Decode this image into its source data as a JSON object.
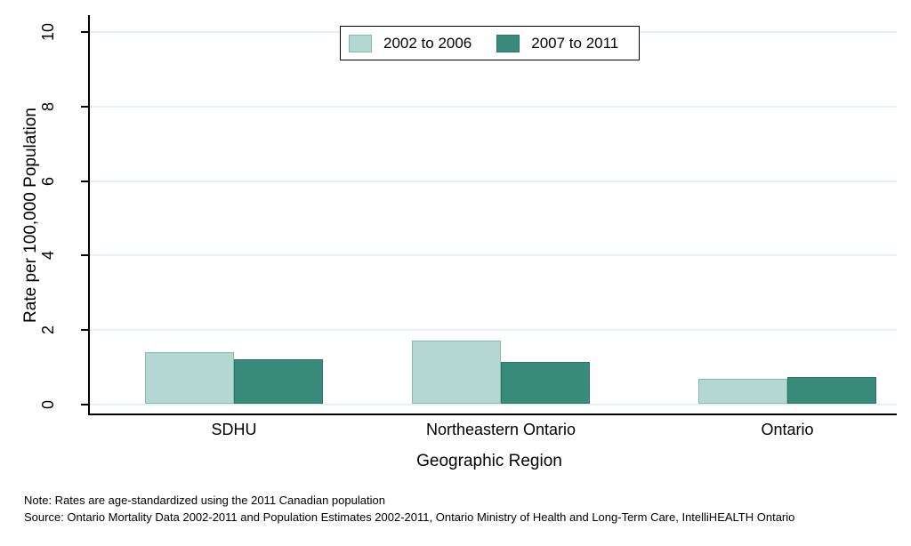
{
  "chart_data": {
    "type": "bar",
    "categories": [
      "SDHU",
      "Northeastern Ontario",
      "Ontario"
    ],
    "series": [
      {
        "name": "2002 to 2006",
        "color": "#b3d8d2",
        "border_color": "#86b9b0",
        "values": [
          1.38,
          1.7,
          0.68
        ]
      },
      {
        "name": "2007 to 2011",
        "color": "#388b7b",
        "border_color": "#2e7568",
        "values": [
          1.2,
          1.13,
          0.72
        ]
      }
    ],
    "title": "",
    "xlabel": "Geographic Region",
    "ylabel": "Rate per 100,000 Population",
    "ylim": [
      0,
      10
    ],
    "yticks": [
      0,
      2,
      4,
      6,
      8,
      10
    ],
    "grid": true,
    "gridline_color": "#e9f0f2",
    "legend_position": "top-center"
  },
  "notes": {
    "note": "Note: Rates are age-standardized using the 2011 Canadian population",
    "source": "Source: Ontario Mortality Data 2002-2011 and Population Estimates 2002-2011, Ontario Ministry of Health and Long-Term Care, IntelliHEALTH Ontario"
  },
  "colors": {
    "background": "#ffffff",
    "axis": "#000000"
  }
}
